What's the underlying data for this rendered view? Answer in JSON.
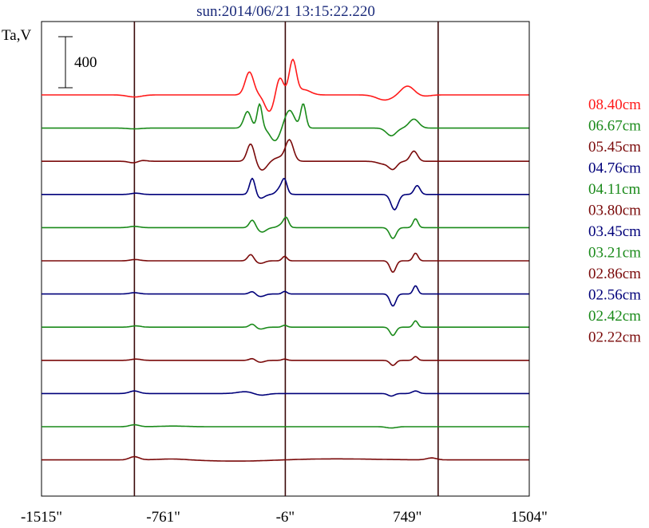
{
  "chart_data": {
    "type": "line",
    "title": "sun:2014/06/21 13:15:22.220",
    "ylabel": "Ta,V",
    "scale_bar_label": "400",
    "xlim": [
      -1515,
      1504
    ],
    "xticks": [
      {
        "value": -1515,
        "label": "-1515\""
      },
      {
        "value": -761,
        "label": "-761\""
      },
      {
        "value": -6,
        "label": "-6\""
      },
      {
        "value": 749,
        "label": "749\""
      },
      {
        "value": 1504,
        "label": "1504\""
      }
    ],
    "vlines": [
      -940,
      -6,
      940
    ],
    "grid": false,
    "legend_position": "right",
    "series": [
      {
        "name": "08.40cm",
        "color": "#ff1a1a",
        "features": [
          [
            -940,
            -16,
            45
          ],
          [
            -228,
            180,
            26
          ],
          [
            -105,
            -130,
            28
          ],
          [
            -40,
            140,
            22
          ],
          [
            40,
            270,
            22
          ],
          [
            110,
            40,
            40
          ],
          [
            610,
            -40,
            50
          ],
          [
            750,
            70,
            40
          ],
          [
            850,
            -10,
            40
          ]
        ]
      },
      {
        "name": "06.67cm",
        "color": "#1a8a1a",
        "features": [
          [
            -940,
            -6,
            40
          ],
          [
            -240,
            130,
            22
          ],
          [
            -165,
            190,
            15
          ],
          [
            -70,
            -100,
            30
          ],
          [
            20,
            140,
            30
          ],
          [
            105,
            190,
            16
          ],
          [
            650,
            -60,
            30
          ],
          [
            790,
            70,
            30
          ]
        ]
      },
      {
        "name": "05.45cm",
        "color": "#7a0a0a",
        "features": [
          [
            -940,
            -15,
            30
          ],
          [
            -900,
            10,
            30
          ],
          [
            -220,
            140,
            22
          ],
          [
            -150,
            -70,
            30
          ],
          [
            -40,
            30,
            40
          ],
          [
            20,
            160,
            24
          ],
          [
            600,
            -20,
            35
          ],
          [
            660,
            -60,
            25
          ],
          [
            790,
            80,
            22
          ]
        ]
      },
      {
        "name": "04.76cm",
        "color": "#00007a",
        "features": [
          [
            -930,
            10,
            30
          ],
          [
            -210,
            130,
            17
          ],
          [
            -160,
            -30,
            25
          ],
          [
            -30,
            60,
            25
          ],
          [
            -10,
            80,
            15
          ],
          [
            670,
            -120,
            22
          ],
          [
            810,
            70,
            18
          ]
        ]
      },
      {
        "name": "04.11cm",
        "color": "#1a8a1a",
        "features": [
          [
            -940,
            10,
            30
          ],
          [
            -210,
            60,
            18
          ],
          [
            -150,
            -35,
            25
          ],
          [
            -20,
            30,
            25
          ],
          [
            0,
            60,
            15
          ],
          [
            660,
            -85,
            20
          ],
          [
            800,
            70,
            15
          ]
        ]
      },
      {
        "name": "03.80cm",
        "color": "#7a0a0a",
        "features": [
          [
            -935,
            10,
            30
          ],
          [
            -220,
            50,
            18
          ],
          [
            -160,
            -20,
            25
          ],
          [
            -10,
            35,
            15
          ],
          [
            660,
            -90,
            18
          ],
          [
            800,
            60,
            15
          ]
        ]
      },
      {
        "name": "03.45cm",
        "color": "#00007a",
        "features": [
          [
            -940,
            10,
            30
          ],
          [
            -210,
            20,
            18
          ],
          [
            -160,
            -20,
            25
          ],
          [
            -10,
            20,
            15
          ],
          [
            660,
            -95,
            18
          ],
          [
            800,
            65,
            14
          ]
        ]
      },
      {
        "name": "03.21cm",
        "color": "#1a8a1a",
        "features": [
          [
            -930,
            10,
            30
          ],
          [
            -210,
            25,
            18
          ],
          [
            -160,
            -15,
            25
          ],
          [
            -10,
            15,
            15
          ],
          [
            660,
            -65,
            18
          ],
          [
            800,
            50,
            14
          ]
        ]
      },
      {
        "name": "02.86cm",
        "color": "#7a0a0a",
        "features": [
          [
            -930,
            10,
            30
          ],
          [
            -210,
            15,
            18
          ],
          [
            -160,
            -15,
            25
          ],
          [
            -10,
            10,
            15
          ],
          [
            660,
            -40,
            18
          ],
          [
            800,
            30,
            14
          ]
        ]
      },
      {
        "name": "02.56cm",
        "color": "#00007a",
        "features": [
          [
            -940,
            20,
            30
          ],
          [
            -250,
            15,
            50
          ],
          [
            -160,
            -15,
            40
          ],
          [
            650,
            -20,
            20
          ],
          [
            800,
            20,
            20
          ]
        ]
      },
      {
        "name": "02.42cm",
        "color": "#1a8a1a",
        "features": [
          [
            -940,
            15,
            30
          ],
          [
            -700,
            5,
            80
          ],
          [
            650,
            -10,
            30
          ]
        ]
      },
      {
        "name": "02.22cm",
        "color": "#7a0a0a",
        "features": [
          [
            -940,
            25,
            30
          ],
          [
            -700,
            8,
            90
          ],
          [
            -300,
            -10,
            200
          ],
          [
            300,
            8,
            250
          ],
          [
            900,
            15,
            30
          ]
        ]
      }
    ]
  }
}
